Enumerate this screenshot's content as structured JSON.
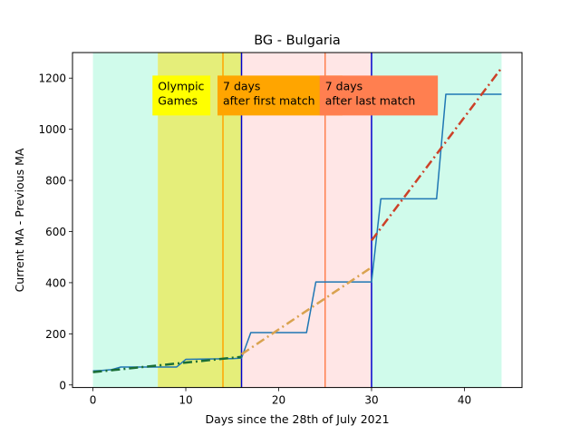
{
  "chart_data": {
    "type": "line",
    "title": "BG - Bulgaria",
    "xlabel": "Days since the 28th of July 2021",
    "ylabel": "Current MA - Previous MA",
    "xlim": [
      -2.2,
      46.2
    ],
    "ylim": [
      -10,
      1300
    ],
    "xticks": [
      0,
      10,
      20,
      30,
      40
    ],
    "yticks": [
      0,
      200,
      400,
      600,
      800,
      1000,
      1200
    ],
    "grid": false,
    "legend": "none",
    "regions": [
      {
        "x0": 0,
        "x1": 44,
        "color": "#d0fbeb"
      },
      {
        "x0": 7,
        "x1": 18,
        "color": "#ffe57a"
      },
      {
        "x0": 7,
        "x1": 16,
        "color": "#e5ee7a"
      },
      {
        "x0": 16,
        "x1": 30,
        "color": "#ffe6e6"
      }
    ],
    "vlines": [
      {
        "x": 14,
        "color": "#ffa500",
        "width": 1.5
      },
      {
        "x": 16,
        "color": "#0000cc",
        "width": 1.5
      },
      {
        "x": 25,
        "color": "#ff7f50",
        "width": 1.5
      },
      {
        "x": 30,
        "color": "#0000cc",
        "width": 1.5
      }
    ],
    "annotations": [
      {
        "lines": [
          "Olympic",
          "Games"
        ],
        "x": 7,
        "bg": "#ffff00"
      },
      {
        "lines": [
          "7 days",
          "after first match"
        ],
        "x": 14,
        "bg": "#ffa500"
      },
      {
        "lines": [
          "7 days",
          "after last match"
        ],
        "x": 25,
        "bg": "#ff7f50"
      }
    ],
    "series": [
      {
        "style": "solid",
        "color": "#1f77b4",
        "x": [
          0,
          1,
          2,
          3,
          9,
          10,
          15,
          16,
          17,
          23,
          24,
          30,
          31,
          37,
          38,
          44
        ],
        "y": [
          55,
          57,
          60,
          70,
          70,
          100,
          103,
          105,
          205,
          205,
          403,
          403,
          728,
          728,
          1137,
          1137
        ]
      },
      {
        "style": "dashdot",
        "color": "#1a6e35",
        "x": [
          0,
          16
        ],
        "y": [
          50,
          110
        ]
      },
      {
        "style": "dashdot",
        "color": "#d9a24f",
        "x": [
          16,
          30
        ],
        "y": [
          120,
          460
        ]
      },
      {
        "style": "dashdot",
        "color": "#cc4128",
        "x": [
          30,
          44
        ],
        "y": [
          565,
          1240
        ]
      }
    ]
  }
}
